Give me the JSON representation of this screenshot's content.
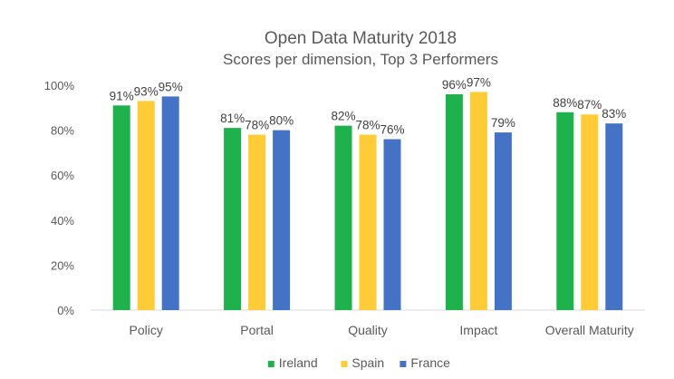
{
  "chart_data": {
    "type": "bar",
    "title": "Open Data Maturity 2018",
    "subtitle": "Scores per dimension, Top 3 Performers",
    "categories": [
      "Policy",
      "Portal",
      "Quality",
      "Impact",
      "Overall Maturity"
    ],
    "series": [
      {
        "name": "Ireland",
        "color": "#1fb14b",
        "values": [
          91,
          81,
          82,
          96,
          88
        ]
      },
      {
        "name": "Spain",
        "color": "#ffcb36",
        "values": [
          93,
          78,
          78,
          97,
          87
        ]
      },
      {
        "name": "France",
        "color": "#4472c4",
        "values": [
          95,
          80,
          76,
          79,
          83
        ]
      }
    ],
    "ylim": [
      0,
      100
    ],
    "yticks": [
      0,
      20,
      40,
      60,
      80,
      100
    ],
    "ytick_labels": [
      "0%",
      "20%",
      "40%",
      "60%",
      "80%",
      "100%"
    ],
    "value_suffix": "%",
    "grid": false,
    "legend_position": "bottom"
  }
}
